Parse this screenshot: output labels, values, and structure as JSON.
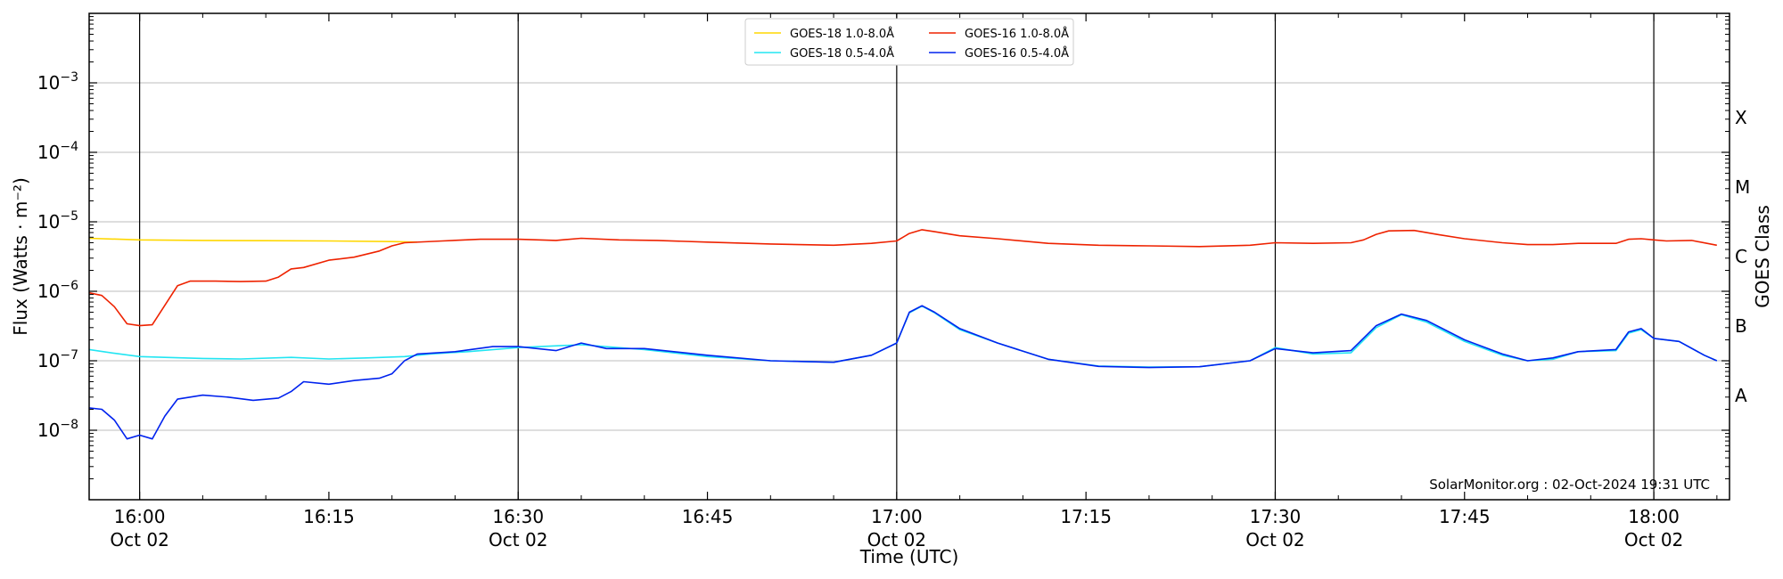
{
  "chart_data": {
    "type": "line",
    "title": "",
    "xlabel": "Time (UTC)",
    "ylabel": "Flux (Watts · m⁻²)",
    "y2label": "GOES Class",
    "y_scale": "log",
    "ylim": [
      1e-09,
      0.01
    ],
    "xlim": [
      "15:56",
      "18:06"
    ],
    "y_ticks": [
      {
        "value": 1e-08,
        "base": "10",
        "exp": "−8"
      },
      {
        "value": 1e-07,
        "base": "10",
        "exp": "−7"
      },
      {
        "value": 1e-06,
        "base": "10",
        "exp": "−6"
      },
      {
        "value": 1e-05,
        "base": "10",
        "exp": "−5"
      },
      {
        "value": 0.0001,
        "base": "10",
        "exp": "−4"
      },
      {
        "value": 0.001,
        "base": "10",
        "exp": "−3"
      }
    ],
    "x_ticks": [
      {
        "time": "16:00",
        "line1": "16:00",
        "line2": "Oct 02"
      },
      {
        "time": "16:15",
        "line1": "16:15",
        "line2": ""
      },
      {
        "time": "16:30",
        "line1": "16:30",
        "line2": "Oct 02"
      },
      {
        "time": "16:45",
        "line1": "16:45",
        "line2": ""
      },
      {
        "time": "17:00",
        "line1": "17:00",
        "line2": "Oct 02"
      },
      {
        "time": "17:15",
        "line1": "17:15",
        "line2": ""
      },
      {
        "time": "17:30",
        "line1": "17:30",
        "line2": "Oct 02"
      },
      {
        "time": "17:45",
        "line1": "17:45",
        "line2": ""
      },
      {
        "time": "18:00",
        "line1": "18:00",
        "line2": "Oct 02"
      }
    ],
    "vertical_lines": [
      "16:00",
      "16:30",
      "17:00",
      "17:30",
      "18:00"
    ],
    "goes_classes": [
      {
        "label": "A",
        "value": 3.16e-08
      },
      {
        "label": "B",
        "value": 3.16e-07
      },
      {
        "label": "C",
        "value": 3.16e-06
      },
      {
        "label": "M",
        "value": 3.16e-05
      },
      {
        "label": "X",
        "value": 0.000316
      }
    ],
    "grid": "horizontal",
    "legend_position": "top-center",
    "series": [
      {
        "name": "GOES-18 1.0-8.0Å",
        "color": "#ffd700",
        "points": [
          [
            "15:56",
            5.8e-06
          ],
          [
            "16:00",
            5.5e-06
          ],
          [
            "16:05",
            5.4e-06
          ],
          [
            "16:10",
            5.35e-06
          ],
          [
            "16:15",
            5.3e-06
          ],
          [
            "16:20",
            5.2e-06
          ],
          [
            "16:22",
            5.1e-06
          ]
        ]
      },
      {
        "name": "GOES-16 1.0-8.0Å",
        "color": "#ee2200",
        "points": [
          [
            "15:56",
            9.5e-07
          ],
          [
            "15:57",
            8.7e-07
          ],
          [
            "15:58",
            6e-07
          ],
          [
            "15:59",
            3.4e-07
          ],
          [
            "16:00",
            3.2e-07
          ],
          [
            "16:01",
            3.3e-07
          ],
          [
            "16:03",
            1.2e-06
          ],
          [
            "16:04",
            1.4e-06
          ],
          [
            "16:06",
            1.4e-06
          ],
          [
            "16:08",
            1.38e-06
          ],
          [
            "16:10",
            1.4e-06
          ],
          [
            "16:11",
            1.6e-06
          ],
          [
            "16:12",
            2.1e-06
          ],
          [
            "16:13",
            2.2e-06
          ],
          [
            "16:15",
            2.8e-06
          ],
          [
            "16:17",
            3.1e-06
          ],
          [
            "16:19",
            3.8e-06
          ],
          [
            "16:20",
            4.5e-06
          ],
          [
            "16:21",
            5e-06
          ],
          [
            "16:24",
            5.3e-06
          ],
          [
            "16:27",
            5.6e-06
          ],
          [
            "16:30",
            5.6e-06
          ],
          [
            "16:33",
            5.4e-06
          ],
          [
            "16:35",
            5.8e-06
          ],
          [
            "16:38",
            5.5e-06
          ],
          [
            "16:41",
            5.4e-06
          ],
          [
            "16:45",
            5.1e-06
          ],
          [
            "16:50",
            4.8e-06
          ],
          [
            "16:55",
            4.6e-06
          ],
          [
            "16:58",
            4.9e-06
          ],
          [
            "17:00",
            5.3e-06
          ],
          [
            "17:01",
            6.8e-06
          ],
          [
            "17:02",
            7.7e-06
          ],
          [
            "17:03",
            7.2e-06
          ],
          [
            "17:05",
            6.3e-06
          ],
          [
            "17:08",
            5.7e-06
          ],
          [
            "17:12",
            4.9e-06
          ],
          [
            "17:16",
            4.6e-06
          ],
          [
            "17:20",
            4.5e-06
          ],
          [
            "17:24",
            4.4e-06
          ],
          [
            "17:28",
            4.6e-06
          ],
          [
            "17:30",
            5e-06
          ],
          [
            "17:33",
            4.9e-06
          ],
          [
            "17:36",
            5e-06
          ],
          [
            "17:37",
            5.5e-06
          ],
          [
            "17:38",
            6.6e-06
          ],
          [
            "17:39",
            7.4e-06
          ],
          [
            "17:41",
            7.5e-06
          ],
          [
            "17:43",
            6.5e-06
          ],
          [
            "17:45",
            5.7e-06
          ],
          [
            "17:48",
            5e-06
          ],
          [
            "17:50",
            4.7e-06
          ],
          [
            "17:52",
            4.7e-06
          ],
          [
            "17:54",
            4.9e-06
          ],
          [
            "17:57",
            4.9e-06
          ],
          [
            "17:58",
            5.6e-06
          ],
          [
            "17:59",
            5.7e-06
          ],
          [
            "18:00",
            5.5e-06
          ],
          [
            "18:01",
            5.3e-06
          ],
          [
            "18:03",
            5.4e-06
          ],
          [
            "18:05",
            4.6e-06
          ]
        ]
      },
      {
        "name": "GOES-18 0.5-4.0Å",
        "color": "#22e5f2",
        "points": [
          [
            "15:56",
            1.45e-07
          ],
          [
            "15:58",
            1.28e-07
          ],
          [
            "16:00",
            1.15e-07
          ],
          [
            "16:02",
            1.12e-07
          ],
          [
            "16:05",
            1.08e-07
          ],
          [
            "16:08",
            1.06e-07
          ],
          [
            "16:12",
            1.12e-07
          ],
          [
            "16:15",
            1.06e-07
          ],
          [
            "16:18",
            1.1e-07
          ],
          [
            "16:21",
            1.15e-07
          ],
          [
            "16:23",
            1.25e-07
          ],
          [
            "16:26",
            1.35e-07
          ],
          [
            "16:30",
            1.55e-07
          ],
          [
            "16:35",
            1.7e-07
          ],
          [
            "16:40",
            1.45e-07
          ],
          [
            "16:45",
            1.15e-07
          ],
          [
            "16:50",
            1e-07
          ],
          [
            "16:55",
            9.5e-08
          ],
          [
            "16:58",
            1.2e-07
          ],
          [
            "17:00",
            1.8e-07
          ],
          [
            "17:01",
            4.9e-07
          ],
          [
            "17:02",
            6.1e-07
          ],
          [
            "17:03",
            4.9e-07
          ],
          [
            "17:05",
            2.8e-07
          ],
          [
            "17:08",
            1.8e-07
          ],
          [
            "17:12",
            1.05e-07
          ],
          [
            "17:16",
            8.4e-08
          ],
          [
            "17:20",
            8.1e-08
          ],
          [
            "17:24",
            8.2e-08
          ],
          [
            "17:28",
            1e-07
          ],
          [
            "17:30",
            1.55e-07
          ],
          [
            "17:33",
            1.25e-07
          ],
          [
            "17:36",
            1.3e-07
          ],
          [
            "17:38",
            3e-07
          ],
          [
            "17:40",
            4.6e-07
          ],
          [
            "17:42",
            3.6e-07
          ],
          [
            "17:45",
            1.9e-07
          ],
          [
            "17:48",
            1.2e-07
          ],
          [
            "17:50",
            1e-07
          ],
          [
            "17:52",
            1.05e-07
          ],
          [
            "17:54",
            1.35e-07
          ],
          [
            "17:57",
            1.4e-07
          ],
          [
            "17:58",
            2.5e-07
          ],
          [
            "17:59",
            2.8e-07
          ],
          [
            "18:00",
            2.1e-07
          ],
          [
            "18:02",
            1.9e-07
          ],
          [
            "18:04",
            1.2e-07
          ],
          [
            "18:05",
            1e-07
          ]
        ]
      },
      {
        "name": "GOES-16 0.5-4.0Å",
        "color": "#0022ee",
        "points": [
          [
            "15:56",
            2.1e-08
          ],
          [
            "15:57",
            2e-08
          ],
          [
            "15:58",
            1.4e-08
          ],
          [
            "15:59",
            7.5e-09
          ],
          [
            "16:00",
            8.5e-09
          ],
          [
            "16:01",
            7.5e-09
          ],
          [
            "16:02",
            1.6e-08
          ],
          [
            "16:03",
            2.8e-08
          ],
          [
            "16:05",
            3.2e-08
          ],
          [
            "16:07",
            3e-08
          ],
          [
            "16:09",
            2.7e-08
          ],
          [
            "16:11",
            2.9e-08
          ],
          [
            "16:12",
            3.6e-08
          ],
          [
            "16:13",
            5e-08
          ],
          [
            "16:15",
            4.6e-08
          ],
          [
            "16:17",
            5.2e-08
          ],
          [
            "16:19",
            5.6e-08
          ],
          [
            "16:20",
            6.5e-08
          ],
          [
            "16:21",
            1e-07
          ],
          [
            "16:22",
            1.25e-07
          ],
          [
            "16:25",
            1.35e-07
          ],
          [
            "16:28",
            1.6e-07
          ],
          [
            "16:30",
            1.6e-07
          ],
          [
            "16:33",
            1.4e-07
          ],
          [
            "16:35",
            1.8e-07
          ],
          [
            "16:37",
            1.5e-07
          ],
          [
            "16:40",
            1.5e-07
          ],
          [
            "16:45",
            1.2e-07
          ],
          [
            "16:50",
            1e-07
          ],
          [
            "16:55",
            9.5e-08
          ],
          [
            "16:58",
            1.2e-07
          ],
          [
            "17:00",
            1.8e-07
          ],
          [
            "17:01",
            5e-07
          ],
          [
            "17:02",
            6.2e-07
          ],
          [
            "17:03",
            5e-07
          ],
          [
            "17:05",
            2.9e-07
          ],
          [
            "17:08",
            1.8e-07
          ],
          [
            "17:12",
            1.05e-07
          ],
          [
            "17:16",
            8.3e-08
          ],
          [
            "17:20",
            8e-08
          ],
          [
            "17:24",
            8.2e-08
          ],
          [
            "17:28",
            1e-07
          ],
          [
            "17:30",
            1.5e-07
          ],
          [
            "17:33",
            1.3e-07
          ],
          [
            "17:36",
            1.4e-07
          ],
          [
            "17:38",
            3.2e-07
          ],
          [
            "17:40",
            4.7e-07
          ],
          [
            "17:42",
            3.8e-07
          ],
          [
            "17:45",
            2e-07
          ],
          [
            "17:48",
            1.25e-07
          ],
          [
            "17:50",
            1e-07
          ],
          [
            "17:52",
            1.1e-07
          ],
          [
            "17:54",
            1.35e-07
          ],
          [
            "17:57",
            1.45e-07
          ],
          [
            "17:58",
            2.6e-07
          ],
          [
            "17:59",
            2.9e-07
          ],
          [
            "18:00",
            2.1e-07
          ],
          [
            "18:02",
            1.9e-07
          ],
          [
            "18:04",
            1.2e-07
          ],
          [
            "18:05",
            1e-07
          ]
        ]
      }
    ],
    "legend_order": [
      0,
      2,
      1,
      3
    ],
    "annotation": "SolarMonitor.org : 02-Oct-2024 19:31 UTC"
  }
}
